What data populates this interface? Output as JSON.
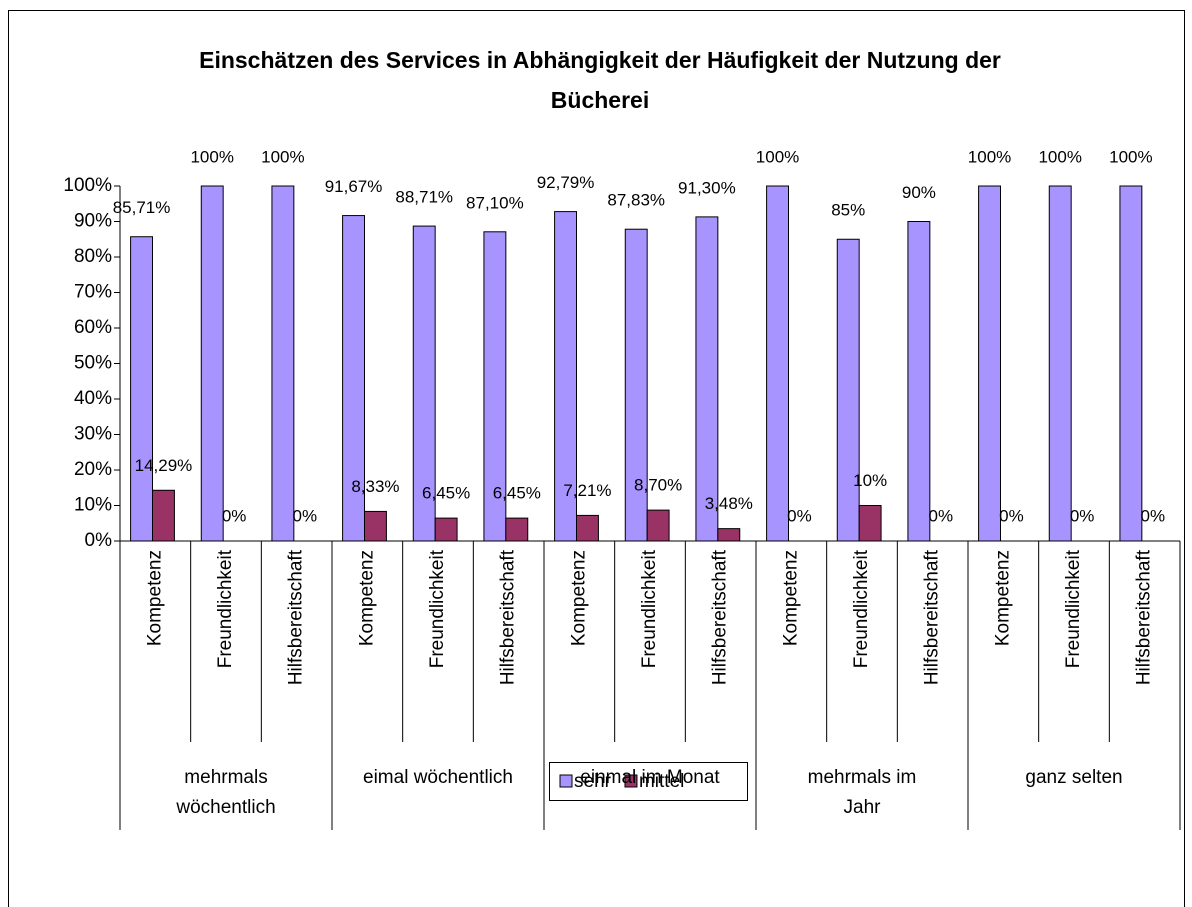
{
  "chart_data": {
    "type": "bar",
    "title": "Einschätzen des Services in Abhängigkeit der Häufigkeit der Nutzung der Bücherei",
    "categories": [
      "Kompetenz",
      "Freundlichkeit",
      "Hilfsbereitschaft",
      "Kompetenz",
      "Freundlichkeit",
      "Hilfsbereitschaft",
      "Kompetenz",
      "Freundlichkeit",
      "Hilfsbereitschaft",
      "Kompetenz",
      "Freundlichkeit",
      "Hilfsbereitschaft",
      "Kompetenz",
      "Freundlichkeit",
      "Hilfsbereitschaft"
    ],
    "groups": [
      "mehrmals wöchentlich",
      "eimal wöchentlich",
      "einmal im Monat",
      "mehrmals im Jahr",
      "ganz selten"
    ],
    "series": [
      {
        "name": "sehr",
        "color": "#a894ff",
        "values": [
          85.71,
          100,
          100,
          91.67,
          88.71,
          87.1,
          92.79,
          87.83,
          91.3,
          100,
          85,
          90,
          100,
          100,
          100
        ],
        "value_labels": [
          "85,71%",
          "100%",
          "100%",
          "91,67%",
          "88,71%",
          "87,10%",
          "92,79%",
          "87,83%",
          "91,30%",
          "100%",
          "85%",
          "90%",
          "100%",
          "100%",
          "100%"
        ]
      },
      {
        "name": "mittel",
        "color": "#993366",
        "values": [
          14.29,
          0,
          0,
          8.33,
          6.45,
          6.45,
          7.21,
          8.7,
          3.48,
          0,
          10,
          0,
          0,
          0,
          0
        ],
        "value_labels": [
          "14,29%",
          "0%",
          "0%",
          "8,33%",
          "6,45%",
          "6,45%",
          "7,21%",
          "8,70%",
          "3,48%",
          "0%",
          "10%",
          "0%",
          "0%",
          "0%",
          "0%"
        ]
      }
    ],
    "ylim": [
      0,
      100
    ],
    "yticks": [
      {
        "value": 0,
        "label": "0%"
      },
      {
        "value": 10,
        "label": "10%"
      },
      {
        "value": 20,
        "label": "20%"
      },
      {
        "value": 30,
        "label": "30%"
      },
      {
        "value": 40,
        "label": "40%"
      },
      {
        "value": 50,
        "label": "50%"
      },
      {
        "value": 60,
        "label": "60%"
      },
      {
        "value": 70,
        "label": "70%"
      },
      {
        "value": 80,
        "label": "80%"
      },
      {
        "value": 90,
        "label": "90%"
      },
      {
        "value": 100,
        "label": "100%"
      }
    ],
    "grid": false,
    "legend": "bottom"
  }
}
